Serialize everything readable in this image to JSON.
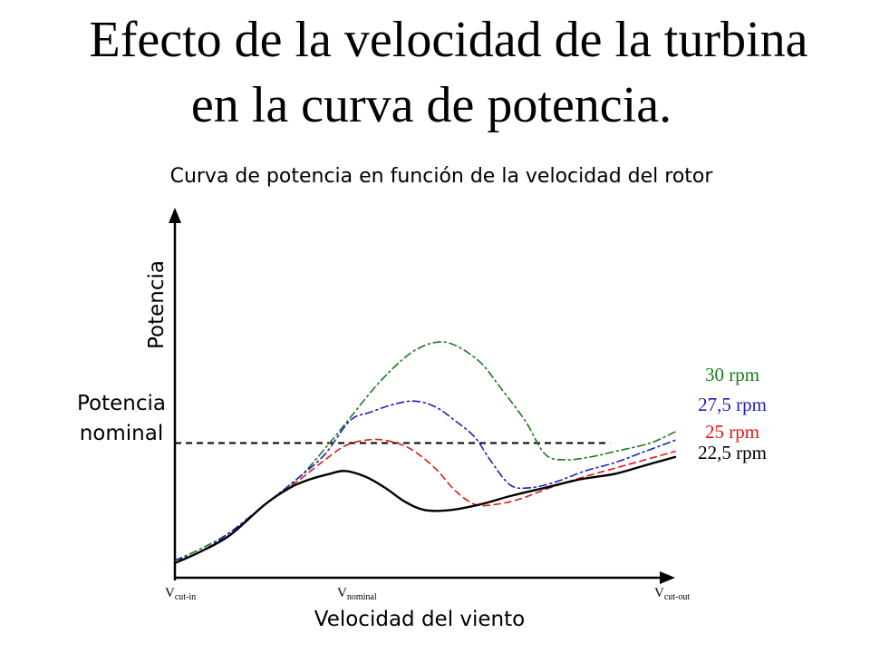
{
  "slide": {
    "title_line1": "Efecto de la velocidad de la turbina",
    "title_line2": "en la curva de potencia."
  },
  "chart_data": {
    "type": "line",
    "title": "Curva de potencia en función de la velocidad del rotor",
    "xlabel": "Velocidad del viento",
    "ylabel": "Potencia",
    "xlim": [
      0,
      100
    ],
    "ylim": [
      0,
      100
    ],
    "x_ticks": [
      {
        "x": 0,
        "main": "V",
        "sub": "cut-in"
      },
      {
        "x": 34,
        "main": "V",
        "sub": "nominal"
      },
      {
        "x": 100,
        "main": "V",
        "sub": "cut-out"
      }
    ],
    "reference_line": {
      "label_line1": "Potencia",
      "label_line2": "nominal",
      "y": 44,
      "x_end": 87,
      "color": "#000000",
      "dash": "dashed"
    },
    "grid": false,
    "legend": "right",
    "series": [
      {
        "name": "30 rpm",
        "color": "#1a7a1a",
        "dash": "dashdot",
        "x": [
          0,
          5,
          11,
          18,
          25,
          30,
          35,
          41,
          47,
          52,
          56,
          61,
          65,
          70,
          74,
          78,
          83,
          88,
          95,
          100
        ],
        "y": [
          2,
          6,
          12,
          22,
          32,
          42,
          53,
          66,
          76,
          80,
          79,
          73,
          64,
          52,
          40,
          38,
          39,
          41,
          44,
          48
        ]
      },
      {
        "name": "27,5 rpm",
        "color": "#1f1fbf",
        "dash": "dashdot",
        "x": [
          0,
          5,
          11,
          18,
          25,
          30,
          35,
          39,
          44,
          48,
          52,
          56,
          60,
          63,
          67,
          71,
          76,
          82,
          88,
          94,
          100
        ],
        "y": [
          2,
          5,
          12,
          22,
          32,
          40,
          52,
          55,
          58,
          59,
          57,
          52,
          46,
          38,
          29,
          28,
          30,
          34,
          37,
          41,
          45
        ]
      },
      {
        "name": "25 rpm",
        "color": "#e01818",
        "dash": "dashed",
        "x": [
          0,
          5,
          11,
          18,
          25,
          30,
          34,
          38,
          42,
          47,
          52,
          56,
          60,
          64,
          69,
          75,
          82,
          88,
          94,
          100
        ],
        "y": [
          1,
          5,
          11,
          22,
          31,
          38,
          43,
          45,
          45,
          42,
          35,
          27,
          22,
          22,
          24,
          28,
          32,
          35,
          38,
          41
        ]
      },
      {
        "name": "22,5 rpm",
        "color": "#000000",
        "dash": "solid",
        "x": [
          0,
          5,
          11,
          18,
          23,
          27,
          31,
          34,
          38,
          42,
          46,
          50,
          55,
          61,
          67,
          74,
          81,
          88,
          94,
          100
        ],
        "y": [
          1,
          5,
          11,
          22,
          28,
          31,
          33,
          34,
          32,
          28,
          23,
          20,
          20,
          22,
          25,
          28,
          31,
          33,
          36,
          39
        ]
      }
    ]
  }
}
